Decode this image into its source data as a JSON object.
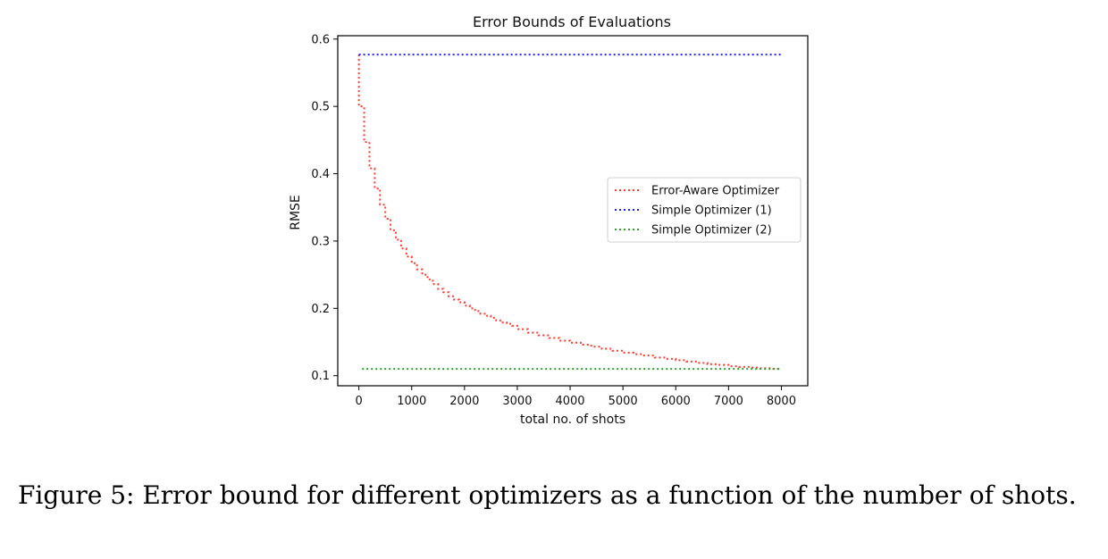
{
  "chart_data": {
    "type": "line",
    "title": "Error Bounds of Evaluations",
    "xlabel": "total no. of shots",
    "ylabel": "RMSE",
    "xlim": [
      -400,
      8500
    ],
    "ylim": [
      0.085,
      0.605
    ],
    "xticks": [
      0,
      1000,
      2000,
      3000,
      4000,
      5000,
      6000,
      7000,
      8000
    ],
    "yticks": [
      0.1,
      0.2,
      0.3,
      0.4,
      0.5,
      0.6
    ],
    "grid": false,
    "legend_position": "center-right",
    "series": [
      {
        "name": "Error-Aware Optimizer",
        "color": "#ff3b2f",
        "linestyle": "dotted",
        "step": true,
        "x": [
          0,
          100,
          200,
          300,
          400,
          500,
          600,
          700,
          800,
          900,
          1000,
          1100,
          1200,
          1300,
          1400,
          1500,
          1600,
          1700,
          1800,
          1900,
          2000,
          2100,
          2200,
          2300,
          2400,
          2500,
          2600,
          2700,
          2800,
          2900,
          3000,
          3200,
          3400,
          3600,
          3800,
          4000,
          4200,
          4400,
          4600,
          4800,
          5000,
          5200,
          5400,
          5600,
          5800,
          6000,
          6200,
          6400,
          6600,
          6800,
          7000,
          7200,
          7400,
          7600,
          7800,
          8000
        ],
        "y": [
          0.577,
          0.5,
          0.447,
          0.408,
          0.378,
          0.354,
          0.333,
          0.316,
          0.302,
          0.289,
          0.277,
          0.267,
          0.258,
          0.25,
          0.243,
          0.236,
          0.229,
          0.224,
          0.218,
          0.213,
          0.209,
          0.204,
          0.2,
          0.196,
          0.192,
          0.189,
          0.186,
          0.182,
          0.179,
          0.177,
          0.174,
          0.169,
          0.164,
          0.16,
          0.156,
          0.152,
          0.149,
          0.146,
          0.143,
          0.14,
          0.137,
          0.134,
          0.132,
          0.13,
          0.127,
          0.125,
          0.123,
          0.121,
          0.119,
          0.117,
          0.116,
          0.114,
          0.113,
          0.112,
          0.111,
          0.11
        ]
      },
      {
        "name": "Simple Optimizer (1)",
        "color": "#1f1fff",
        "linestyle": "dotted",
        "x": [
          0,
          8000
        ],
        "y": [
          0.577,
          0.577
        ]
      },
      {
        "name": "Simple Optimizer (2)",
        "color": "#2ca02c",
        "linestyle": "dotted",
        "x": [
          60,
          8000
        ],
        "y": [
          0.11,
          0.11
        ]
      }
    ]
  },
  "caption": {
    "text": "Figure 5: Error bound for different optimizers as a function of the number of shots."
  }
}
